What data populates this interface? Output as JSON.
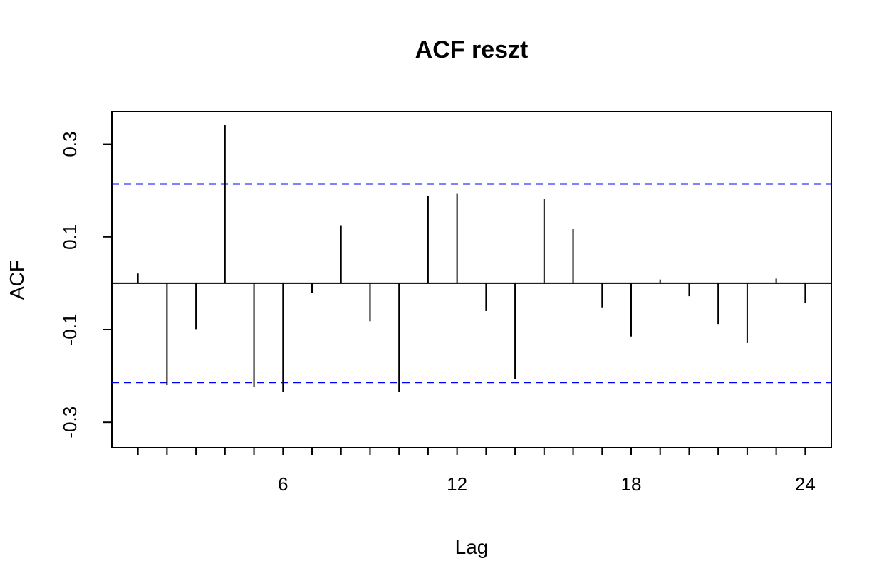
{
  "chart_data": {
    "type": "bar",
    "title": "ACF reszt",
    "xlabel": "Lag",
    "ylabel": "ACF",
    "xlim": [
      0.1,
      24.9
    ],
    "ylim": [
      -0.355,
      0.37
    ],
    "x_ticks": [
      1,
      2,
      3,
      4,
      5,
      6,
      7,
      8,
      9,
      10,
      11,
      12,
      13,
      14,
      15,
      16,
      17,
      18,
      19,
      20,
      21,
      22,
      23,
      24
    ],
    "x_tick_labels": [
      "6",
      "12",
      "18",
      "24"
    ],
    "x_labeled_ticks": [
      6,
      12,
      18,
      24
    ],
    "y_ticks": [
      -0.3,
      -0.1,
      0.1,
      0.3
    ],
    "y_tick_labels": [
      "-0.3",
      "-0.1",
      "0.1",
      "0.3"
    ],
    "lags": [
      1,
      2,
      3,
      4,
      5,
      6,
      7,
      8,
      9,
      10,
      11,
      12,
      13,
      14,
      15,
      16,
      17,
      18,
      19,
      20,
      21,
      22,
      23,
      24
    ],
    "values": [
      0.021,
      -0.22,
      -0.099,
      0.342,
      -0.224,
      -0.234,
      -0.021,
      0.125,
      -0.082,
      -0.235,
      0.188,
      0.194,
      -0.06,
      -0.206,
      0.182,
      0.118,
      -0.052,
      -0.115,
      0.008,
      -0.028,
      -0.088,
      -0.129,
      0.01,
      -0.042
    ],
    "ci_upper": 0.214,
    "ci_lower": -0.214,
    "ci_color": "#0000ff",
    "bar_color": "#000000"
  }
}
